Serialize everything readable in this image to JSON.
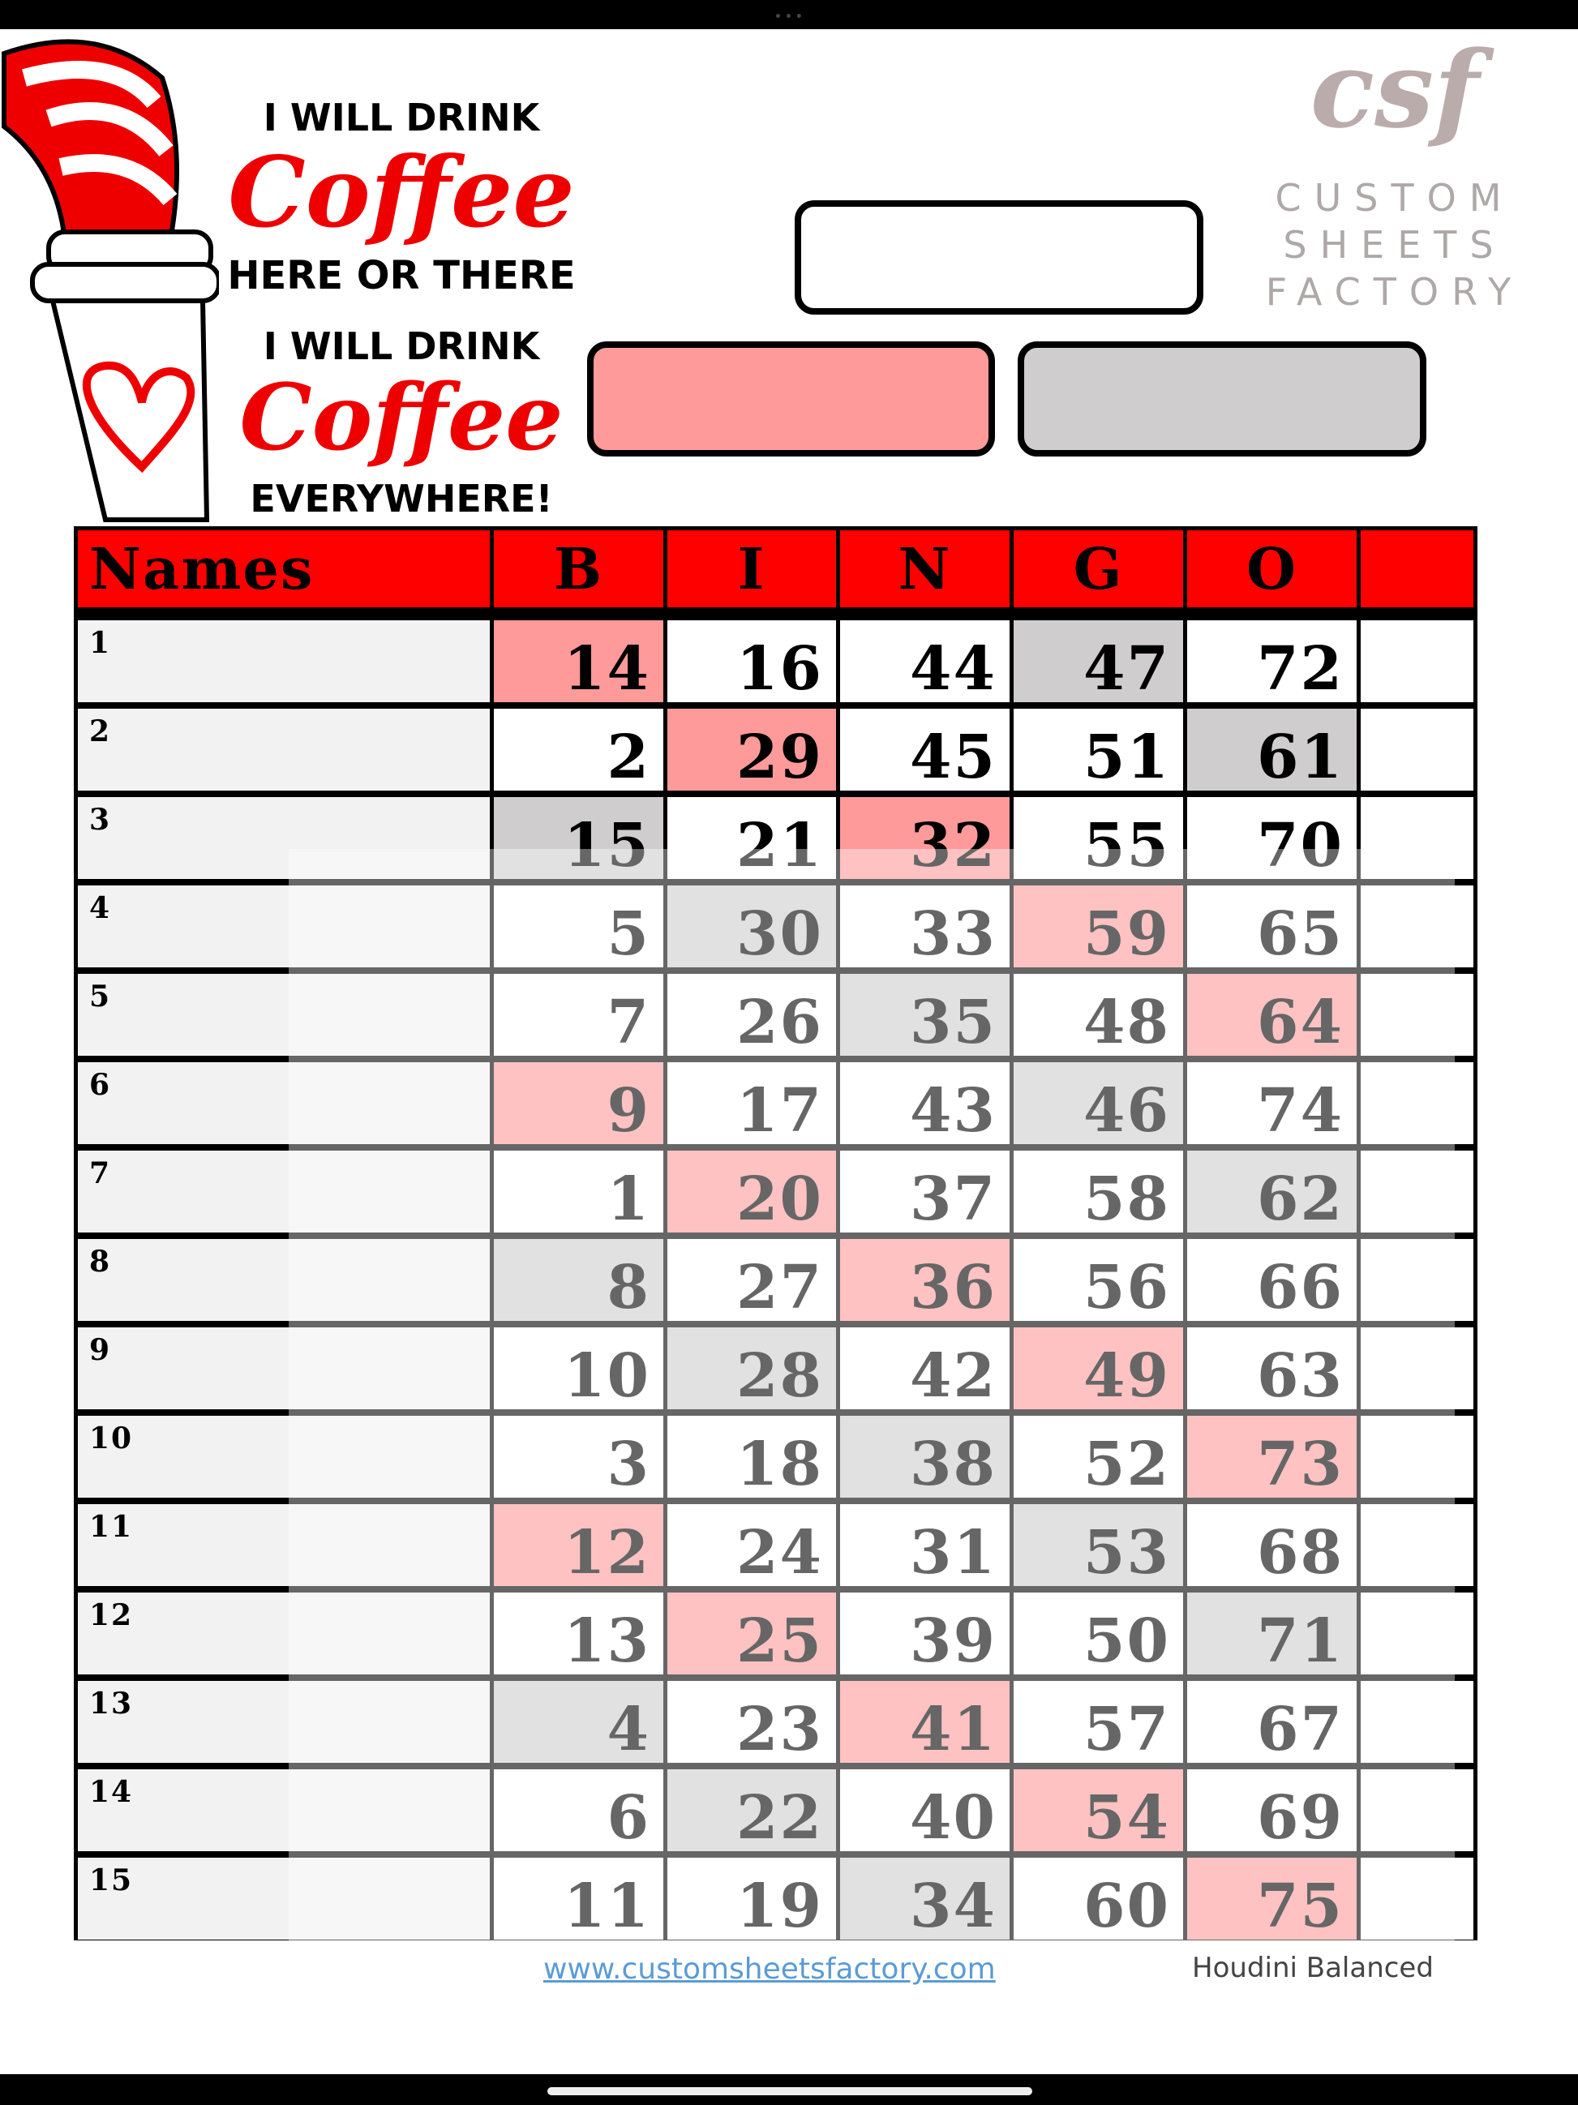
{
  "logo": {
    "line1": "I WILL DRINK",
    "line2": "Coffee",
    "line3": "HERE OR THERE",
    "line4": "I WILL DRINK",
    "line5": "Coffee",
    "line6": "EVERYWHERE!"
  },
  "watermark": {
    "mark": "csf",
    "text": "CUSTOM SHEETS FACTORY"
  },
  "colors": {
    "header": "#ff0000",
    "pink": "#ff9a9a",
    "grey": "#cfcdce",
    "names_bg": "#f2f2f2"
  },
  "table": {
    "headers": [
      "Names",
      "B",
      "I",
      "N",
      "G",
      "O",
      ""
    ],
    "rows": [
      {
        "label": "1",
        "nums": [
          14,
          16,
          44,
          47,
          72
        ],
        "hl": [
          "p",
          "",
          "",
          "g",
          ""
        ]
      },
      {
        "label": "2",
        "nums": [
          2,
          29,
          45,
          51,
          61
        ],
        "hl": [
          "",
          "p",
          "",
          "",
          "g"
        ]
      },
      {
        "label": "3",
        "nums": [
          15,
          21,
          32,
          55,
          70
        ],
        "hl": [
          "g",
          "",
          "p",
          "",
          ""
        ]
      },
      {
        "label": "4",
        "nums": [
          5,
          30,
          33,
          59,
          65
        ],
        "hl": [
          "",
          "g",
          "",
          "p",
          ""
        ]
      },
      {
        "label": "5",
        "nums": [
          7,
          26,
          35,
          48,
          64
        ],
        "hl": [
          "",
          "",
          "g",
          "",
          "p"
        ]
      },
      {
        "label": "6",
        "nums": [
          9,
          17,
          43,
          46,
          74
        ],
        "hl": [
          "p",
          "",
          "",
          "g",
          ""
        ]
      },
      {
        "label": "7",
        "nums": [
          1,
          20,
          37,
          58,
          62
        ],
        "hl": [
          "",
          "p",
          "",
          "",
          "g"
        ]
      },
      {
        "label": "8",
        "nums": [
          8,
          27,
          36,
          56,
          66
        ],
        "hl": [
          "g",
          "",
          "p",
          "",
          ""
        ]
      },
      {
        "label": "9",
        "nums": [
          10,
          28,
          42,
          49,
          63
        ],
        "hl": [
          "",
          "g",
          "",
          "p",
          ""
        ]
      },
      {
        "label": "10",
        "nums": [
          3,
          18,
          38,
          52,
          73
        ],
        "hl": [
          "",
          "",
          "g",
          "",
          "p"
        ]
      },
      {
        "label": "11",
        "nums": [
          12,
          24,
          31,
          53,
          68
        ],
        "hl": [
          "p",
          "",
          "",
          "g",
          ""
        ]
      },
      {
        "label": "12",
        "nums": [
          13,
          25,
          39,
          50,
          71
        ],
        "hl": [
          "",
          "p",
          "",
          "",
          "g"
        ]
      },
      {
        "label": "13",
        "nums": [
          4,
          23,
          41,
          57,
          67
        ],
        "hl": [
          "g",
          "",
          "p",
          "",
          ""
        ]
      },
      {
        "label": "14",
        "nums": [
          6,
          22,
          40,
          54,
          69
        ],
        "hl": [
          "",
          "g",
          "",
          "p",
          ""
        ]
      },
      {
        "label": "15",
        "nums": [
          11,
          19,
          34,
          60,
          75
        ],
        "hl": [
          "",
          "",
          "g",
          "",
          "p"
        ]
      }
    ]
  },
  "footer": {
    "link": "www.customsheetsfactory.com",
    "pattern": "Houdini Balanced"
  }
}
